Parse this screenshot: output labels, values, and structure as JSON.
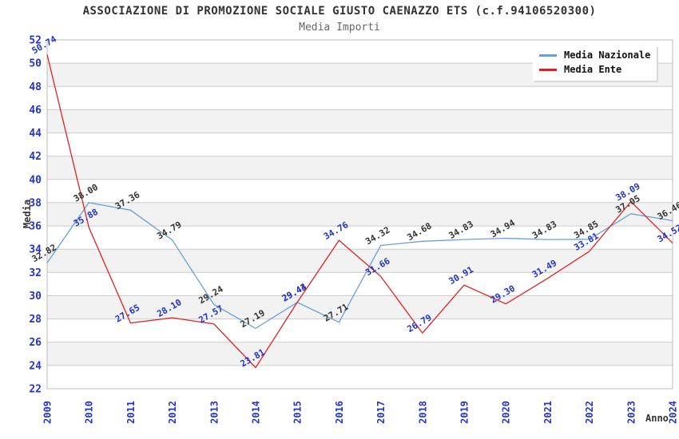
{
  "chart_data": {
    "type": "line",
    "title": "ASSOCIAZIONE DI PROMOZIONE SOCIALE GIUSTO CAENAZZO ETS (c.f.94106520300)",
    "subtitle": "Media Importi",
    "xlabel": "Anno",
    "ylabel": "Media",
    "x": [
      "2009",
      "2010",
      "2011",
      "2012",
      "2013",
      "2014",
      "2015",
      "2016",
      "2017",
      "2018",
      "2019",
      "2020",
      "2021",
      "2022",
      "2023",
      "2024"
    ],
    "ylim": [
      22,
      52
    ],
    "yticks": [
      22,
      24,
      26,
      28,
      30,
      32,
      34,
      36,
      38,
      40,
      42,
      44,
      46,
      48,
      50,
      52
    ],
    "grid": "horizontal-gridlines-with-alternating-bands",
    "legend_position": "top-right",
    "series": [
      {
        "name": "Media Nazionale",
        "color": "#66A0DC",
        "label_color": "#333333",
        "values": [
          32.82,
          38.0,
          37.36,
          34.79,
          29.24,
          27.19,
          29.43,
          27.71,
          34.32,
          34.68,
          34.83,
          34.94,
          34.83,
          34.85,
          37.05,
          36.46
        ]
      },
      {
        "name": "Media Ente",
        "color": "#E02222",
        "label_color": "#2233CC",
        "values": [
          50.74,
          35.88,
          27.65,
          28.1,
          27.57,
          23.81,
          29.44,
          34.76,
          31.66,
          26.79,
          30.91,
          29.3,
          31.49,
          33.81,
          38.09,
          34.52
        ]
      }
    ],
    "colors": {
      "tick": "#2233CC",
      "band": "#F2F2F2",
      "gridline": "#CCCCCC",
      "border": "#BBBBBB",
      "title": "#333333",
      "subtitle": "#666666"
    }
  }
}
